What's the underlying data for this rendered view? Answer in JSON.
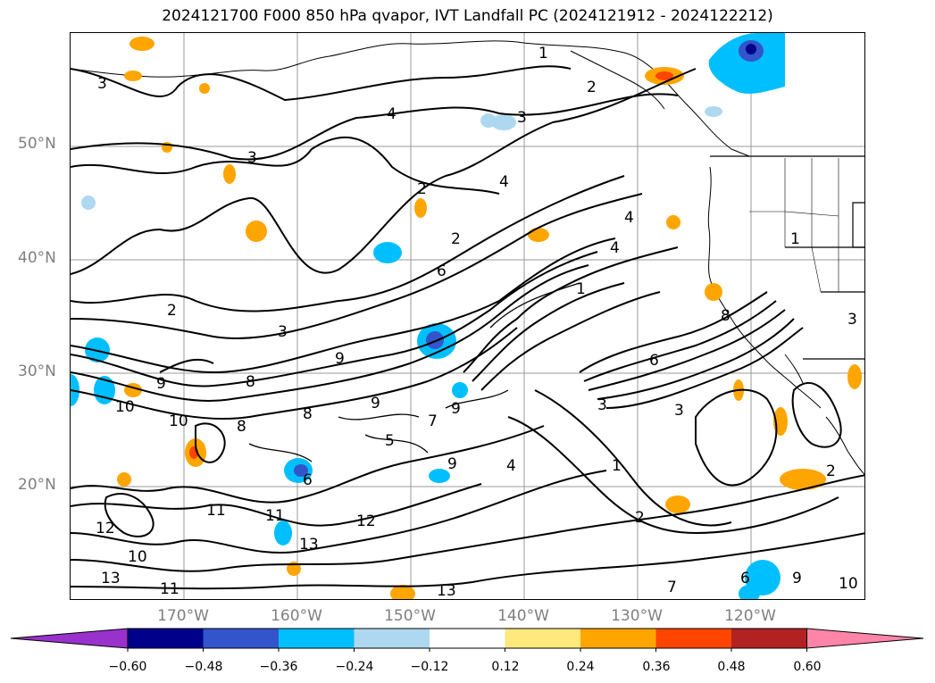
{
  "title": "2024121700 F000 850 hPa qvapor, IVT Landfall PC (2024121912 - 2024122212)",
  "map": {
    "lat_labels": [
      "50°N",
      "40°N",
      "30°N",
      "20°N"
    ],
    "lon_labels": [
      "170°W",
      "160°W",
      "150°W",
      "140°W",
      "130°W",
      "120°W"
    ],
    "contour_labels": [
      "1",
      "3",
      "2",
      "4",
      "3",
      "3",
      "2",
      "4",
      "2",
      "6",
      "4",
      "1",
      "4",
      "3",
      "2",
      "9",
      "8",
      "9",
      "6",
      "8",
      "10",
      "8",
      "9",
      "10",
      "9",
      "7",
      "9",
      "3",
      "4",
      "1",
      "6",
      "5",
      "11",
      "11",
      "12",
      "13",
      "13",
      "12",
      "10",
      "13",
      "11",
      "7",
      "6",
      "9",
      "10",
      "2",
      "2",
      "3",
      "3",
      "8",
      "1"
    ]
  },
  "colorbar": {
    "ticks": [
      "−0.60",
      "−0.48",
      "−0.36",
      "−0.24",
      "−0.12",
      "0.12",
      "0.24",
      "0.36",
      "0.48",
      "0.60"
    ],
    "colors": [
      "#9932cc",
      "#00008b",
      "#3355cc",
      "#00bfff",
      "#add8f0",
      "#ffffff",
      "#ffe87c",
      "#ffa500",
      "#ff4500",
      "#b22222",
      "#ff85a8"
    ]
  }
}
